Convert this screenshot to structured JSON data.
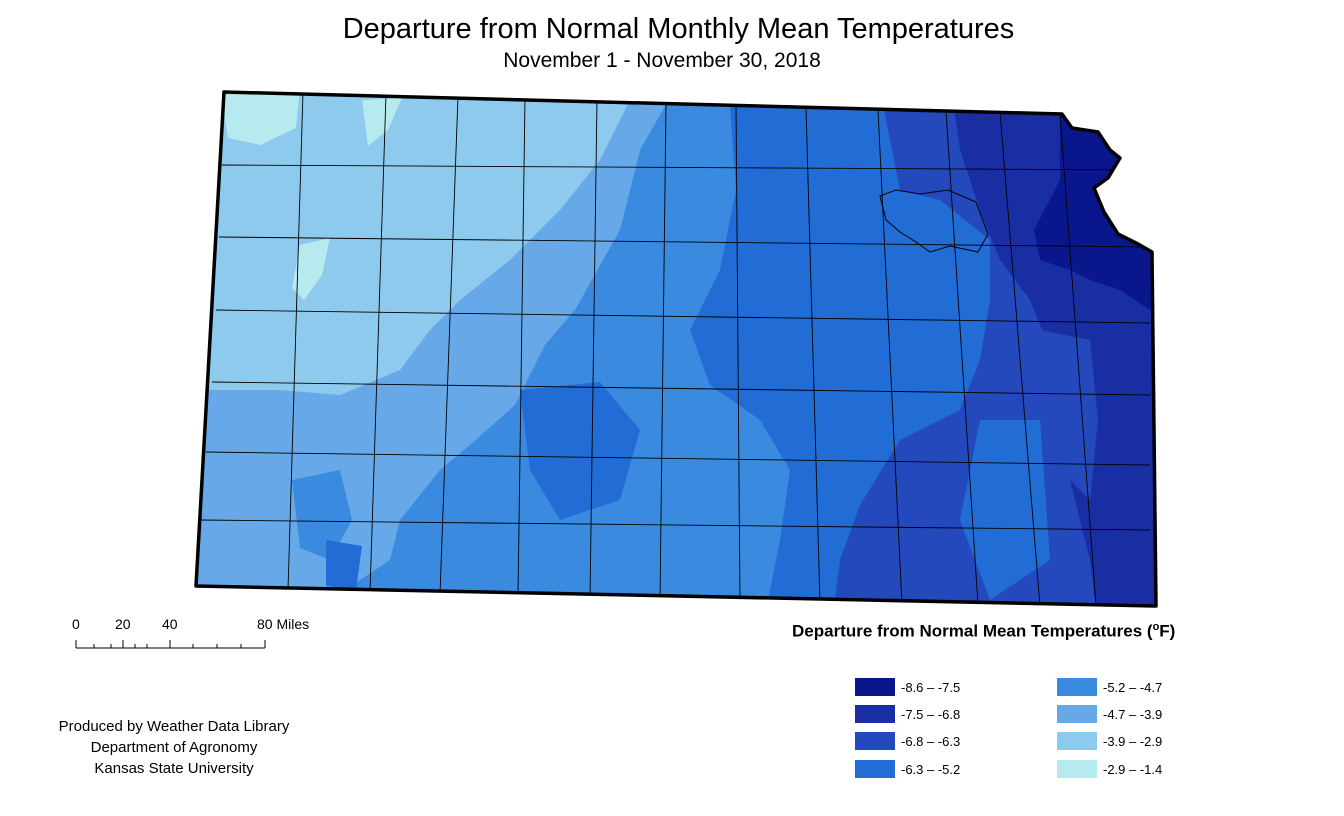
{
  "map": {
    "title": "Departure from Normal Monthly Mean Temperatures",
    "subtitle": "November 1 - November 30, 2018"
  },
  "scale_bar": {
    "ticks": [
      "0",
      "20",
      "40",
      "80 Miles"
    ]
  },
  "credits": {
    "line1": "Produced by Weather Data Library",
    "line2": "Department of Agronomy",
    "line3": "Kansas State University"
  },
  "legend": {
    "title": "Departure from Normal Mean Temperatures (",
    "unit_sup": "o",
    "unit_tail": "F)",
    "classes": [
      {
        "label": "-8.6 – -7.5",
        "color": "#0a168c"
      },
      {
        "label": "-7.5 – -6.8",
        "color": "#1a2ea4"
      },
      {
        "label": "-6.8 – -6.3",
        "color": "#2449bc"
      },
      {
        "label": "-6.3 – -5.2",
        "color": "#226cd6"
      },
      {
        "label": "-5.2 – -4.7",
        "color": "#3a8ae0"
      },
      {
        "label": "-4.7 – -3.9",
        "color": "#67a9e8"
      },
      {
        "label": "-3.9 – -2.9",
        "color": "#8ecaee"
      },
      {
        "label": "-2.9 – -1.4",
        "color": "#b6eaee"
      }
    ]
  }
}
